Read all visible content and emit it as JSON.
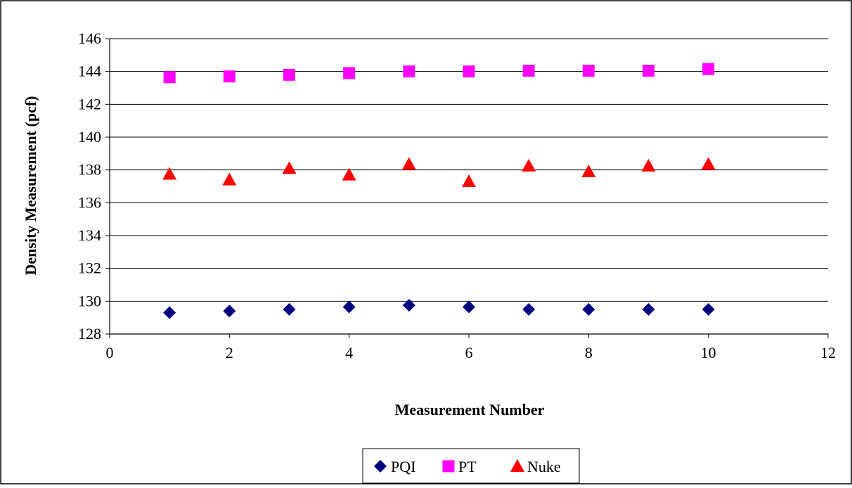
{
  "chart_data": {
    "type": "scatter",
    "title": "",
    "xlabel": "Measurement Number",
    "ylabel": "Density Measurement (pcf)",
    "xlim": [
      0,
      12
    ],
    "ylim": [
      128,
      146
    ],
    "xticks": [
      "0",
      "2",
      "4",
      "6",
      "8",
      "10",
      "12"
    ],
    "yticks": [
      "128",
      "130",
      "132",
      "134",
      "136",
      "138",
      "140",
      "142",
      "144",
      "146"
    ],
    "grid": "horizontal",
    "legend_position": "bottom",
    "series": [
      {
        "name": "PQI",
        "marker": "diamond",
        "color": "#000080",
        "points": [
          [
            1,
            129.3
          ],
          [
            2,
            129.4
          ],
          [
            3,
            129.5
          ],
          [
            4,
            129.65
          ],
          [
            5,
            129.75
          ],
          [
            6,
            129.65
          ],
          [
            7,
            129.5
          ],
          [
            8,
            129.5
          ],
          [
            9,
            129.5
          ],
          [
            10,
            129.5
          ]
        ]
      },
      {
        "name": "PT",
        "marker": "square",
        "color": "#FF00FF",
        "points": [
          [
            1,
            143.65
          ],
          [
            2,
            143.7
          ],
          [
            3,
            143.8
          ],
          [
            4,
            143.9
          ],
          [
            5,
            144.0
          ],
          [
            6,
            144.0
          ],
          [
            7,
            144.05
          ],
          [
            8,
            144.05
          ],
          [
            9,
            144.05
          ],
          [
            10,
            144.15
          ]
        ]
      },
      {
        "name": "Nuke",
        "marker": "triangle",
        "color": "#FF0000",
        "points": [
          [
            1,
            137.75
          ],
          [
            2,
            137.4
          ],
          [
            3,
            138.1
          ],
          [
            4,
            137.7
          ],
          [
            5,
            138.35
          ],
          [
            6,
            137.3
          ],
          [
            7,
            138.25
          ],
          [
            8,
            137.9
          ],
          [
            9,
            138.25
          ],
          [
            10,
            138.35
          ]
        ]
      }
    ]
  }
}
